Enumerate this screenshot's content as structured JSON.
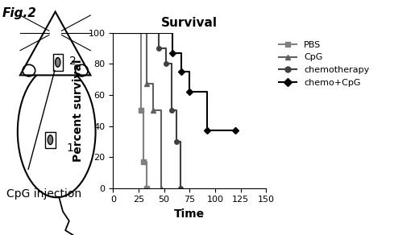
{
  "figure_label": "Fig.2",
  "diagram": {
    "sites": [
      "1",
      "2"
    ],
    "annotation": "CpG injection"
  },
  "chart_data": {
    "type": "line",
    "title": "Survival",
    "x_label": "Time",
    "y_label": "Percent survival",
    "line_style": "steps",
    "xlim": [
      0,
      150
    ],
    "xticks": [
      0,
      25,
      50,
      75,
      100,
      125,
      150
    ],
    "ylim": [
      0,
      100
    ],
    "yticks": [
      0,
      20,
      40,
      60,
      80,
      100
    ],
    "legend": "upper left",
    "series": [
      {
        "name": "PBS",
        "color": "#808080",
        "marker": "square",
        "x": [
          0,
          27,
          30,
          33
        ],
        "values": [
          100,
          50,
          17,
          0
        ]
      },
      {
        "name": "CpG",
        "color": "#606060",
        "marker": "triangle",
        "x": [
          0,
          33,
          39,
          47
        ],
        "values": [
          100,
          67,
          50,
          0
        ]
      },
      {
        "name": "chemotherapy",
        "color": "#404040",
        "marker": "circle",
        "x": [
          0,
          45,
          52,
          57,
          62,
          66
        ],
        "values": [
          100,
          90,
          80,
          50,
          30,
          0
        ]
      },
      {
        "name": "chemo+CpG",
        "color": "#000000",
        "marker": "diamond",
        "x": [
          0,
          58,
          67,
          75,
          92,
          120
        ],
        "values": [
          100,
          87,
          75,
          62,
          37,
          37
        ]
      }
    ]
  }
}
